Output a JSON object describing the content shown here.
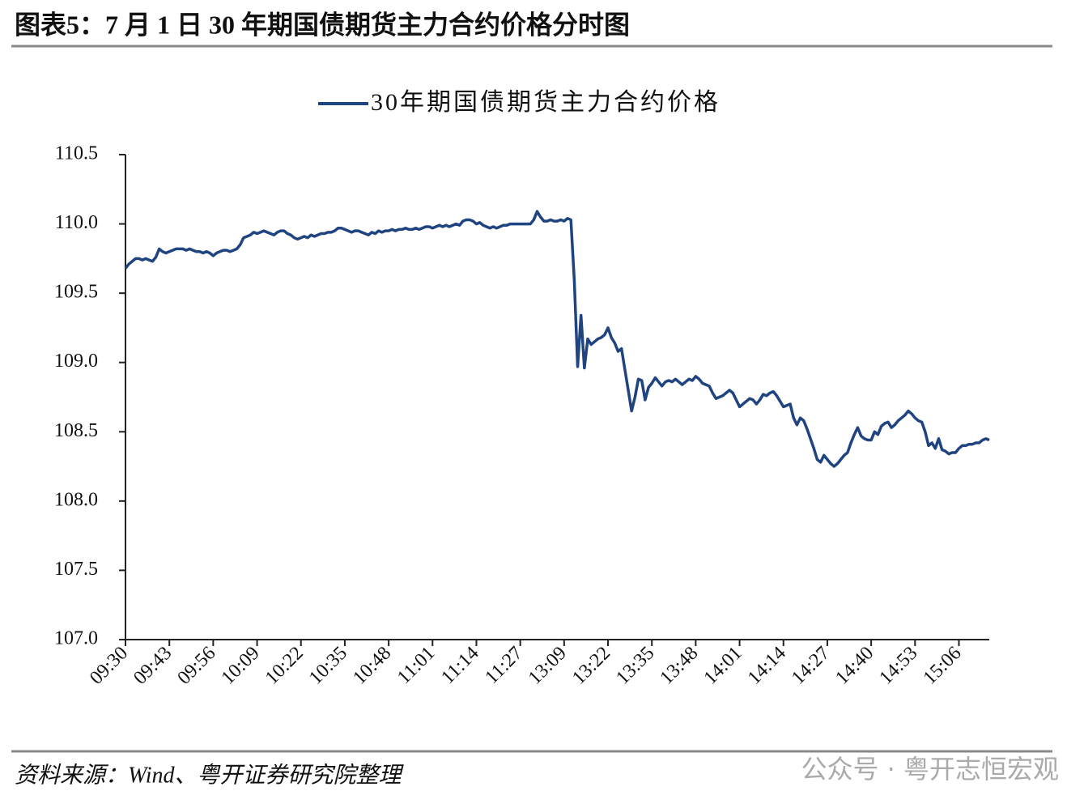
{
  "chart_data": {
    "type": "line",
    "title": "图表5：7 月 1 日 30 年期国债期货主力合约价格分时图",
    "source": "资料来源：Wind、粤开证券研究院整理",
    "watermark": "公众号 · 粤开志恒宏观",
    "legend": "top",
    "categories": [
      "09:30",
      null,
      null,
      null,
      null,
      null,
      null,
      null,
      null,
      null,
      null,
      null,
      null,
      "09:43",
      null,
      null,
      null,
      null,
      null,
      null,
      null,
      null,
      null,
      null,
      null,
      null,
      "09:56",
      null,
      null,
      null,
      null,
      null,
      null,
      null,
      null,
      null,
      null,
      null,
      null,
      "10:09",
      null,
      null,
      null,
      null,
      null,
      null,
      null,
      null,
      null,
      null,
      null,
      null,
      "10:22",
      null,
      null,
      null,
      null,
      null,
      null,
      null,
      null,
      null,
      null,
      null,
      null,
      "10:35",
      null,
      null,
      null,
      null,
      null,
      null,
      null,
      null,
      null,
      null,
      null,
      null,
      "10:48",
      null,
      null,
      null,
      null,
      null,
      null,
      null,
      null,
      null,
      null,
      null,
      null,
      "11:01",
      null,
      null,
      null,
      null,
      null,
      null,
      null,
      null,
      null,
      null,
      null,
      null,
      "11:14",
      null,
      null,
      null,
      null,
      null,
      null,
      null,
      null,
      null,
      null,
      null,
      null,
      "11:27",
      null,
      null,
      null,
      null,
      null,
      null,
      null,
      null,
      null,
      null,
      null,
      null,
      "13:09",
      null,
      null,
      null,
      null,
      null,
      null,
      null,
      null,
      null,
      null,
      null,
      null,
      "13:22",
      null,
      null,
      null,
      null,
      null,
      null,
      null,
      null,
      null,
      null,
      null,
      null,
      "13:35",
      null,
      null,
      null,
      null,
      null,
      null,
      null,
      null,
      null,
      null,
      null,
      null,
      "13:48",
      null,
      null,
      null,
      null,
      null,
      null,
      null,
      null,
      null,
      null,
      null,
      null,
      "14:01",
      null,
      null,
      null,
      null,
      null,
      null,
      null,
      null,
      null,
      null,
      null,
      null,
      "14:14",
      null,
      null,
      null,
      null,
      null,
      null,
      null,
      null,
      null,
      null,
      null,
      null,
      "14:27",
      null,
      null,
      null,
      null,
      null,
      null,
      null,
      null,
      null,
      null,
      null,
      null,
      "14:40",
      null,
      null,
      null,
      null,
      null,
      null,
      null,
      null,
      null,
      null,
      null,
      null,
      "14:53",
      null,
      null,
      null,
      null,
      null,
      null,
      null,
      null,
      null,
      null,
      null,
      null,
      "15:06",
      null,
      null,
      null,
      null,
      null,
      null,
      null,
      null,
      null
    ],
    "series": [
      {
        "name": "30年期国债期货主力合约价格",
        "color": "#1f4480",
        "values": [
          109.68,
          109.71,
          109.73,
          109.75,
          109.75,
          109.74,
          109.75,
          109.74,
          109.73,
          109.76,
          109.82,
          109.8,
          109.79,
          109.8,
          109.81,
          109.82,
          109.82,
          109.82,
          109.81,
          109.82,
          109.81,
          109.8,
          109.8,
          109.79,
          109.8,
          109.79,
          109.77,
          109.79,
          109.8,
          109.81,
          109.81,
          109.8,
          109.81,
          109.82,
          109.85,
          109.9,
          109.91,
          109.92,
          109.94,
          109.93,
          109.94,
          109.95,
          109.94,
          109.93,
          109.92,
          109.94,
          109.95,
          109.95,
          109.93,
          109.92,
          109.9,
          109.89,
          109.9,
          109.91,
          109.9,
          109.92,
          109.91,
          109.92,
          109.93,
          109.93,
          109.94,
          109.94,
          109.95,
          109.97,
          109.97,
          109.96,
          109.95,
          109.94,
          109.95,
          109.95,
          109.94,
          109.93,
          109.92,
          109.94,
          109.93,
          109.95,
          109.94,
          109.95,
          109.95,
          109.96,
          109.95,
          109.96,
          109.96,
          109.97,
          109.96,
          109.96,
          109.97,
          109.96,
          109.97,
          109.98,
          109.98,
          109.97,
          109.98,
          109.99,
          109.98,
          109.99,
          109.98,
          109.99,
          110.0,
          109.99,
          110.02,
          110.03,
          110.03,
          110.02,
          110.0,
          110.01,
          109.99,
          109.98,
          109.97,
          109.98,
          109.97,
          109.98,
          109.99,
          109.99,
          110.0,
          110.0,
          110.0,
          110.0,
          110.0,
          110.0,
          110.0,
          110.03,
          110.09,
          110.05,
          110.02,
          110.02,
          110.03,
          110.02,
          110.02,
          110.03,
          110.02,
          110.04,
          110.03,
          109.6,
          108.97,
          109.34,
          108.96,
          109.17,
          109.13,
          109.15,
          109.17,
          109.18,
          109.2,
          109.25,
          109.18,
          109.14,
          109.08,
          109.1,
          108.95,
          108.8,
          108.65,
          108.75,
          108.88,
          108.87,
          108.73,
          108.82,
          108.85,
          108.89,
          108.86,
          108.83,
          108.86,
          108.87,
          108.86,
          108.88,
          108.86,
          108.84,
          108.86,
          108.88,
          108.87,
          108.9,
          108.88,
          108.85,
          108.84,
          108.83,
          108.78,
          108.74,
          108.75,
          108.76,
          108.78,
          108.8,
          108.78,
          108.73,
          108.68,
          108.7,
          108.72,
          108.74,
          108.73,
          108.7,
          108.73,
          108.77,
          108.76,
          108.78,
          108.79,
          108.76,
          108.72,
          108.68,
          108.69,
          108.7,
          108.6,
          108.55,
          108.6,
          108.58,
          108.52,
          108.45,
          108.38,
          108.3,
          108.28,
          108.33,
          108.3,
          108.27,
          108.25,
          108.27,
          108.3,
          108.33,
          108.35,
          108.42,
          108.48,
          108.53,
          108.47,
          108.45,
          108.44,
          108.44,
          108.5,
          108.48,
          108.54,
          108.56,
          108.57,
          108.53,
          108.55,
          108.58,
          108.6,
          108.62,
          108.65,
          108.63,
          108.6,
          108.58,
          108.57,
          108.5,
          108.4,
          108.42,
          108.38,
          108.45,
          108.37,
          108.36,
          108.34,
          108.35,
          108.35,
          108.38,
          108.4,
          108.4,
          108.41,
          108.41,
          108.42,
          108.42,
          108.44,
          108.45,
          108.44
        ]
      }
    ],
    "ylim": [
      107,
      110.5
    ],
    "yticks": [
      {
        "value": 107,
        "label": "107.0"
      },
      107.5,
      {
        "value": 108,
        "label": "108.0"
      },
      108.5,
      {
        "value": 109,
        "label": "109.0"
      },
      109.5,
      {
        "value": 110,
        "label": "110.0"
      },
      110.5
    ]
  }
}
